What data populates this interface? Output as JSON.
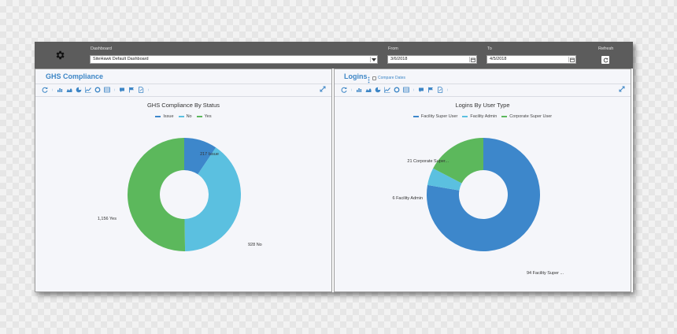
{
  "header": {
    "dashboard_label": "Dashboard",
    "dashboard_value": "SiteHawk Default Dashboard",
    "from_label": "From",
    "from_value": "3/6/2018",
    "to_label": "To",
    "to_value": "4/5/2018",
    "refresh_label": "Refresh"
  },
  "icons": {
    "settings": "gear-icon",
    "dropdown": "chevron-down-icon",
    "calendar": "calendar-icon",
    "refresh": "refresh-icon",
    "expand": "expand-icon",
    "more": "more-vertical-icon"
  },
  "toolbar_icons": [
    "refresh-icon",
    "more-vertical-icon",
    "bar-chart-icon",
    "area-chart-icon",
    "pie-chart-icon",
    "line-chart-icon",
    "donut-chart-icon",
    "table-icon",
    "more-vertical-icon",
    "comment-icon",
    "flag-icon",
    "export-icon",
    "more-vertical-icon"
  ],
  "colors": {
    "header_bg": "#5c5c5c",
    "accent": "#3d86c6",
    "dark_blue": "#3d87cb",
    "light_blue": "#5bc0e0",
    "green": "#5cb85c"
  },
  "panels": {
    "ghs": {
      "title": "GHS Compliance",
      "chart_title": "GHS Compliance By Status"
    },
    "logins": {
      "title": "Logins",
      "compare_label": "Compare Dates",
      "chart_title": "Logins By User Type"
    }
  },
  "chart_data": [
    {
      "type": "pie",
      "title": "GHS Compliance By Status",
      "categories": [
        "Issue",
        "No",
        "Yes"
      ],
      "values": [
        217,
        928,
        1156
      ],
      "data_labels": [
        "217 Issue",
        "928 No",
        "1,156 Yes"
      ],
      "colors": [
        "#3d87cb",
        "#5bc0e0",
        "#5cb85c"
      ],
      "legend": "top-center",
      "donut": true
    },
    {
      "type": "pie",
      "title": "Logins By User Type",
      "categories": [
        "Facility Super User",
        "Facility Admin",
        "Corporate Super User"
      ],
      "values": [
        94,
        6,
        21
      ],
      "data_labels": [
        "94 Facility Super ...",
        "6 Facility Admin",
        "21 Corporate Super..."
      ],
      "colors": [
        "#3d87cb",
        "#5bc0e0",
        "#5cb85c"
      ],
      "legend": "top-center",
      "donut": true
    }
  ]
}
